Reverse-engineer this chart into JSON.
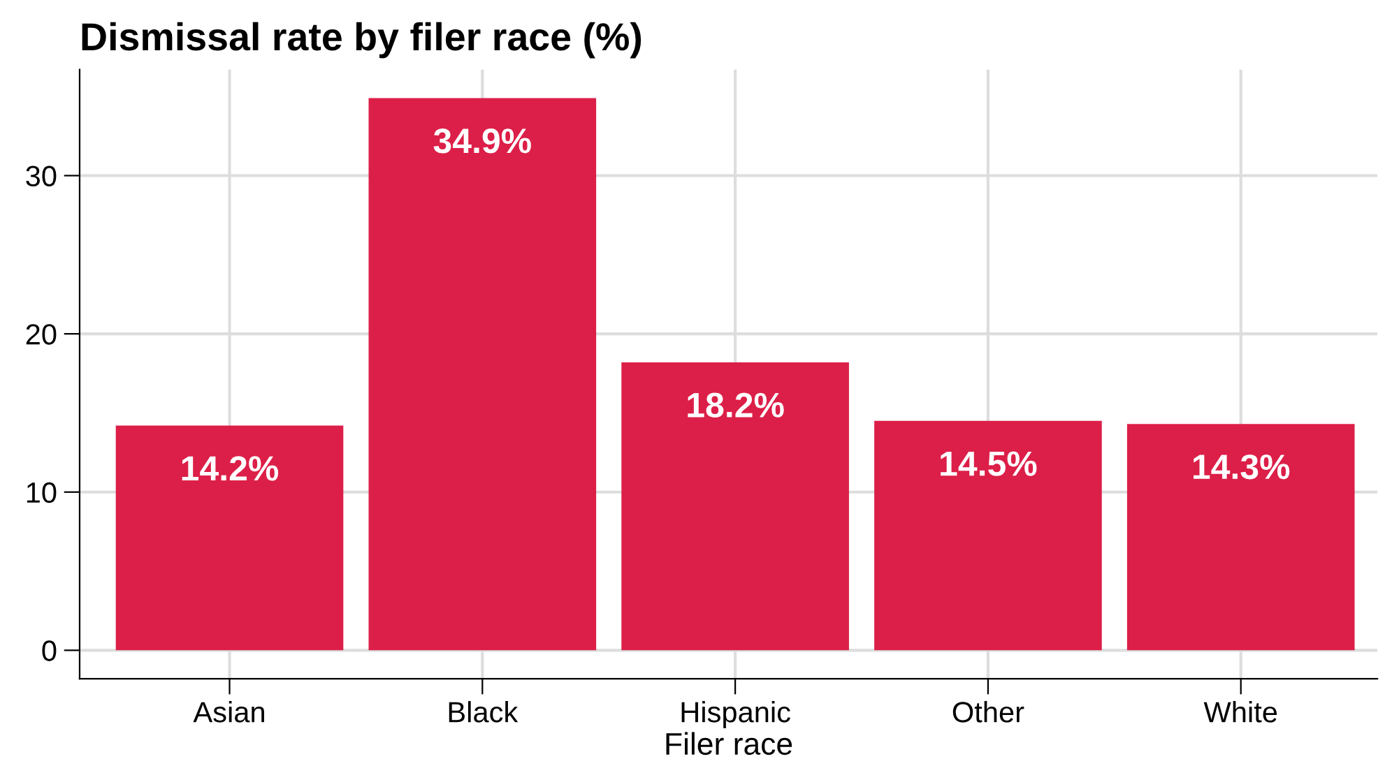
{
  "chart_data": {
    "type": "bar",
    "title": "Dismissal rate by filer race (%)",
    "xlabel": "Filer race",
    "categories": [
      "Asian",
      "Black",
      "Hispanic",
      "Other",
      "White"
    ],
    "values": [
      14.2,
      34.9,
      18.2,
      14.5,
      14.3
    ],
    "value_labels": [
      "14.2%",
      "34.9%",
      "18.2%",
      "14.5%",
      "14.3%"
    ],
    "color": "#dc1f48",
    "ylim": [
      -1.8,
      36.7
    ],
    "yticks": [
      0,
      10,
      20,
      30
    ],
    "grid": true,
    "legend": false
  }
}
